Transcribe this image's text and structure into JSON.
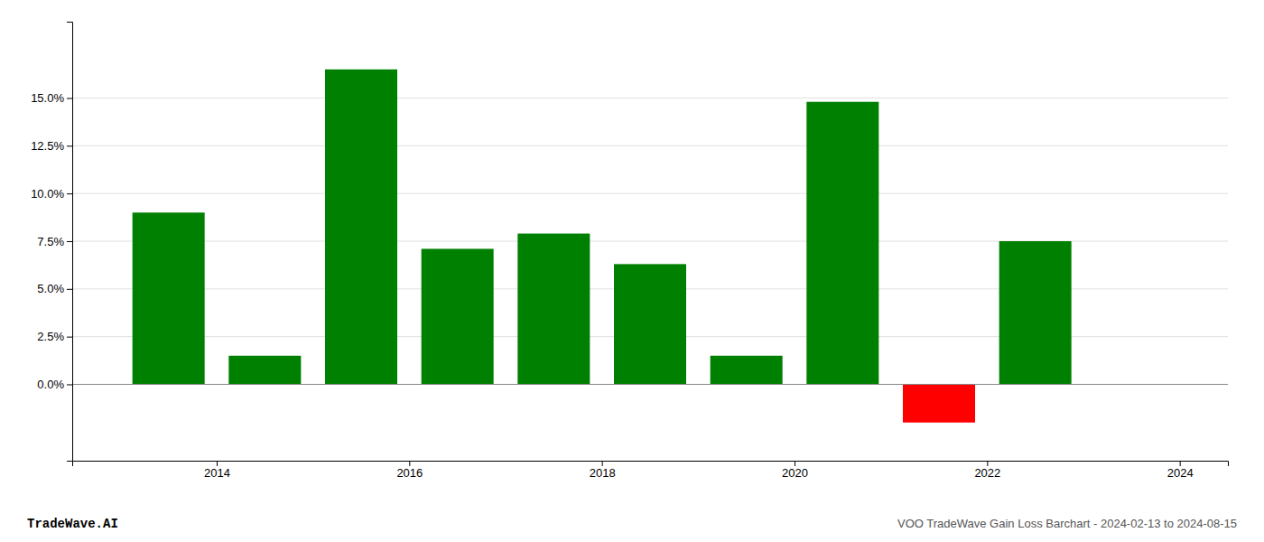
{
  "chart_data": {
    "type": "bar",
    "title": "VOO TradeWave Gain Loss Barchart - 2024-02-13 to 2024-08-15",
    "annotations": [
      "TradeWave.AI"
    ],
    "x": [
      2013.5,
      2014.5,
      2015.5,
      2016.5,
      2017.5,
      2018.5,
      2019.5,
      2020.5,
      2021.5,
      2022.5
    ],
    "values": [
      0.09,
      0.015,
      0.165,
      0.071,
      0.079,
      0.063,
      0.015,
      0.148,
      -0.02,
      0.075
    ],
    "colors": [
      "#008000",
      "#008000",
      "#008000",
      "#008000",
      "#008000",
      "#008000",
      "#008000",
      "#008000",
      "#ff0000",
      "#008000"
    ],
    "xlim": [
      2012.5,
      2024.5
    ],
    "xticks": [
      2014,
      2016,
      2018,
      2020,
      2022,
      2024
    ],
    "ylim": [
      -0.04,
      0.19
    ],
    "yticks": [
      {
        "value": 0.0,
        "label": "0.0%"
      },
      {
        "value": 0.025,
        "label": "2.5%"
      },
      {
        "value": 0.05,
        "label": "5.0%"
      },
      {
        "value": 0.075,
        "label": "7.5%"
      },
      {
        "value": 0.1,
        "label": "10.0%"
      },
      {
        "value": 0.125,
        "label": "12.5%"
      },
      {
        "value": 0.15,
        "label": "15.0%"
      }
    ],
    "grid": true
  }
}
